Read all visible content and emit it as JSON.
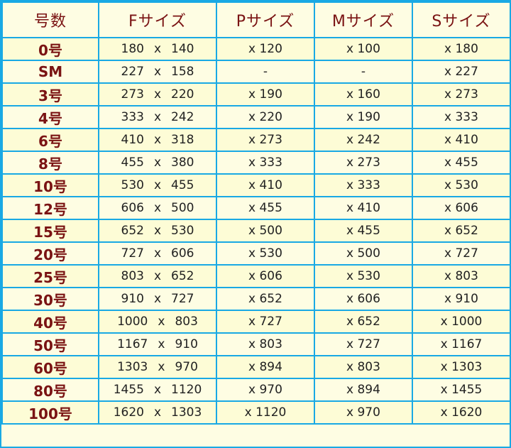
{
  "colors": {
    "border": "#19a9e4",
    "background": "#fefde3",
    "header_text": "#7a1313",
    "label_text": "#7a1313",
    "value_text": "#222222"
  },
  "table": {
    "headers": [
      "号数",
      "Fサイズ",
      "Pサイズ",
      "Mサイズ",
      "Sサイズ"
    ],
    "rows": [
      {
        "label": "0号",
        "f_w": "180",
        "f_h": "140",
        "p": "x 120",
        "m": "x 100",
        "s": "x 180"
      },
      {
        "label": "SM",
        "f_w": "227",
        "f_h": "158",
        "p": "-",
        "m": "-",
        "s": "x 227"
      },
      {
        "label": "3号",
        "f_w": "273",
        "f_h": "220",
        "p": "x 190",
        "m": "x 160",
        "s": "x 273"
      },
      {
        "label": "4号",
        "f_w": "333",
        "f_h": "242",
        "p": "x 220",
        "m": "x 190",
        "s": "x 333"
      },
      {
        "label": "6号",
        "f_w": "410",
        "f_h": "318",
        "p": "x 273",
        "m": "x 242",
        "s": "x 410"
      },
      {
        "label": "8号",
        "f_w": "455",
        "f_h": "380",
        "p": "x 333",
        "m": "x 273",
        "s": "x 455"
      },
      {
        "label": "10号",
        "f_w": "530",
        "f_h": "455",
        "p": "x 410",
        "m": "x 333",
        "s": "x 530"
      },
      {
        "label": "12号",
        "f_w": "606",
        "f_h": "500",
        "p": "x 455",
        "m": "x 410",
        "s": "x 606"
      },
      {
        "label": "15号",
        "f_w": "652",
        "f_h": "530",
        "p": "x 500",
        "m": "x 455",
        "s": "x 652"
      },
      {
        "label": "20号",
        "f_w": "727",
        "f_h": "606",
        "p": "x 530",
        "m": "x 500",
        "s": "x 727"
      },
      {
        "label": "25号",
        "f_w": "803",
        "f_h": "652",
        "p": "x 606",
        "m": "x 530",
        "s": "x 803"
      },
      {
        "label": "30号",
        "f_w": "910",
        "f_h": "727",
        "p": "x 652",
        "m": "x 606",
        "s": "x 910"
      },
      {
        "label": "40号",
        "f_w": "1000",
        "f_h": "803",
        "p": "x 727",
        "m": "x 652",
        "s": "x 1000"
      },
      {
        "label": "50号",
        "f_w": "1167",
        "f_h": "910",
        "p": "x 803",
        "m": "x 727",
        "s": "x 1167"
      },
      {
        "label": "60号",
        "f_w": "1303",
        "f_h": "970",
        "p": "x 894",
        "m": "x 803",
        "s": "x 1303"
      },
      {
        "label": "80号",
        "f_w": "1455",
        "f_h": "1120",
        "p": "x 970",
        "m": "x 894",
        "s": "x 1455"
      },
      {
        "label": "100号",
        "f_w": "1620",
        "f_h": "1303",
        "p": "x 1120",
        "m": "x 970",
        "s": "x 1620"
      }
    ],
    "separator": "x"
  }
}
